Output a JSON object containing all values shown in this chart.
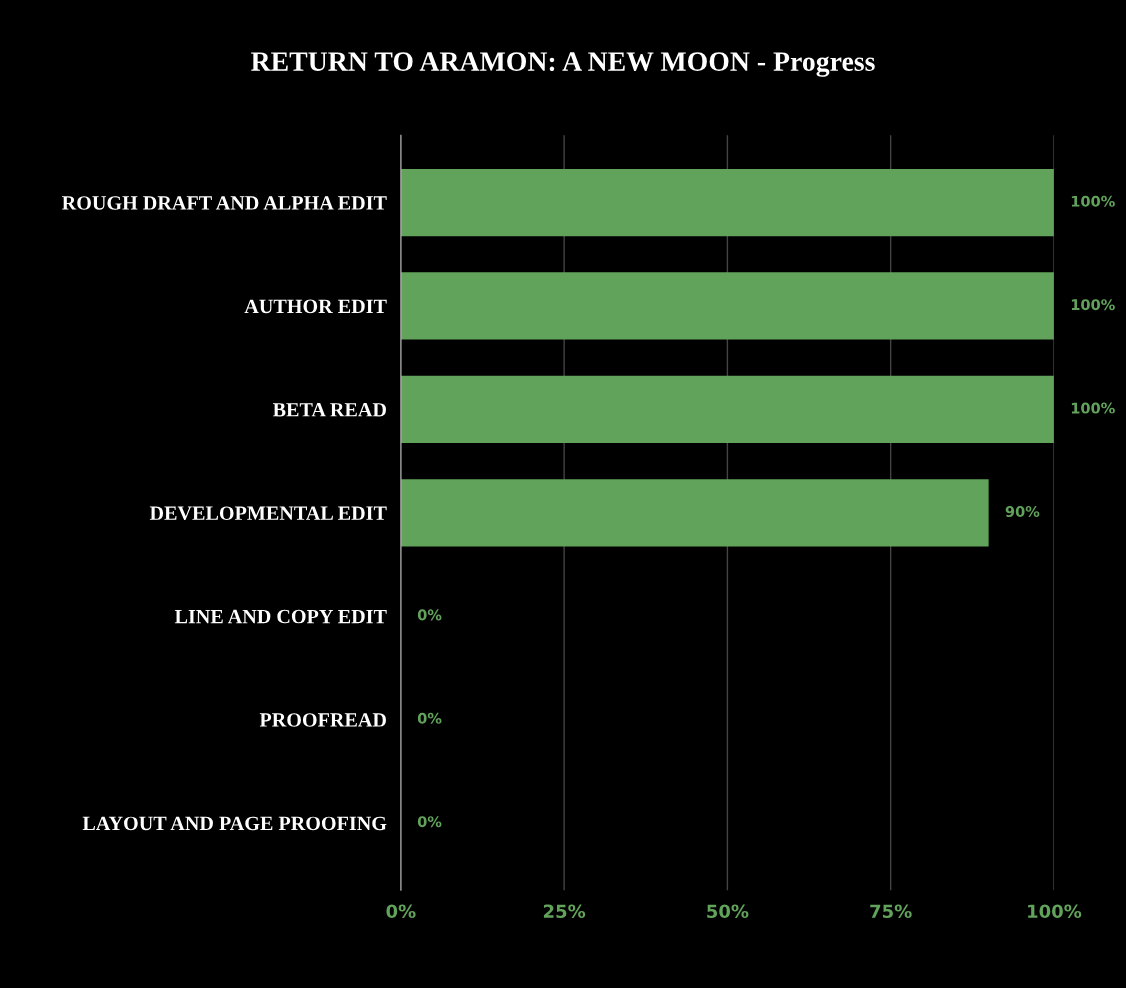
{
  "chart_data": {
    "type": "bar",
    "orientation": "horizontal",
    "title": "RETURN TO ARAMON: A NEW MOON - Progress",
    "categories": [
      "ROUGH DRAFT AND ALPHA EDIT",
      "AUTHOR EDIT",
      "BETA READ",
      "DEVELOPMENTAL EDIT",
      "LINE AND COPY EDIT",
      "PROOFREAD",
      "LAYOUT AND PAGE PROOFING"
    ],
    "values": [
      100,
      100,
      100,
      90,
      0,
      0,
      0
    ],
    "value_labels": [
      "100%",
      "100%",
      "100%",
      "90%",
      "0%",
      "0%",
      "0%"
    ],
    "color": "#62a35b",
    "xlim": [
      0,
      100
    ],
    "xticks": [
      {
        "value": 0,
        "label": "0%"
      },
      {
        "value": 25,
        "label": "25%"
      },
      {
        "value": 50,
        "label": "50%"
      },
      {
        "value": 75,
        "label": "75%"
      },
      {
        "value": 100,
        "label": "100%"
      }
    ],
    "grid": "x",
    "legend": false
  }
}
